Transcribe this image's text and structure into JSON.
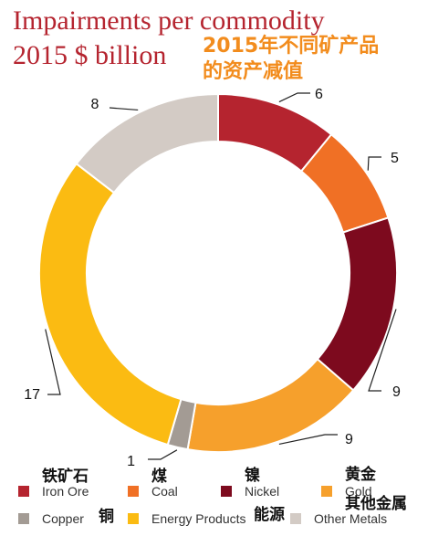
{
  "chart_data": {
    "type": "pie",
    "variant": "donut",
    "title_lines": [
      "Impairments per commodity",
      "2015 $ billion"
    ],
    "annotation_cn_lines": [
      "2015年不同矿产品",
      "的资产减值"
    ],
    "start_angle": "12 o'clock",
    "direction": "clockwise",
    "slices": [
      {
        "label": "Iron Ore",
        "label_cn": "铁矿石",
        "value": 6,
        "value_label": "6",
        "color": "#b5242f"
      },
      {
        "label": "Coal",
        "label_cn": "煤",
        "value": 5,
        "value_label": "5",
        "color": "#f07025"
      },
      {
        "label": "Nickel",
        "label_cn": "镍",
        "value": 9,
        "value_label": "9",
        "color": "#7d0a1e"
      },
      {
        "label": "Gold",
        "label_cn": "黄金",
        "value": 9,
        "value_label": "9",
        "color": "#f6a02c"
      },
      {
        "label": "Copper",
        "label_cn": "铜",
        "value": 1,
        "value_label": "1",
        "color": "#a39b94"
      },
      {
        "label": "Energy Products",
        "label_cn": "能源",
        "value": 17,
        "value_label": "17",
        "color": "#fbbb12"
      },
      {
        "label": "Other Metals",
        "label_cn": "其他金属",
        "value": 8,
        "value_label": "8",
        "color": "#d3cbc5"
      }
    ],
    "legend": {
      "placement": "bottom",
      "columns": 4
    }
  }
}
